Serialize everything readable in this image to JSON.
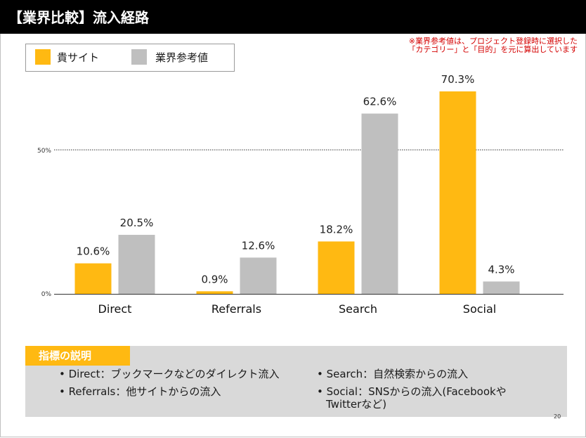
{
  "header": {
    "title": "【業界比較】流入経路"
  },
  "legend": {
    "own_label": "貴サイト",
    "industry_label": "業界参考値"
  },
  "note": {
    "line1": "※業界参考値は、プロジェクト登録時に選択した",
    "line2": "「カテゴリー」と「目的」を元に算出しています"
  },
  "chart_data": {
    "type": "bar",
    "categories": [
      "Direct",
      "Referrals",
      "Search",
      "Social"
    ],
    "series": [
      {
        "name": "貴サイト",
        "values": [
          10.6,
          0.9,
          18.2,
          70.3
        ],
        "labels": [
          "10.6%",
          "0.9%",
          "18.2%",
          "70.3%"
        ],
        "color": "#ffb912"
      },
      {
        "name": "業界参考値",
        "values": [
          20.5,
          12.6,
          62.6,
          4.3
        ],
        "labels": [
          "20.5%",
          "12.6%",
          "62.6%",
          "4.3%"
        ],
        "color": "#bfbfbf"
      }
    ],
    "ylim": [
      0,
      70.3
    ],
    "reference_line": {
      "value": 50,
      "label": "50%",
      "style": "dotted"
    },
    "baseline_label": "0%",
    "xlabel": "",
    "ylabel": "",
    "grid": false
  },
  "description": {
    "heading": "指標の説明",
    "items": [
      "• Direct：ブックマークなどのダイレクト流入",
      "• Referrals：他サイトからの流入",
      "• Search：自然検索からの流入",
      "• Social：SNSからの流入(Facebookや",
      "Twitterなど)"
    ]
  },
  "page_number": "20",
  "colors": {
    "header_bg": "#000000",
    "accent": "#ffb912",
    "industry": "#bfbfbf",
    "note": "#d40000",
    "panel": "#d9d9d9"
  }
}
